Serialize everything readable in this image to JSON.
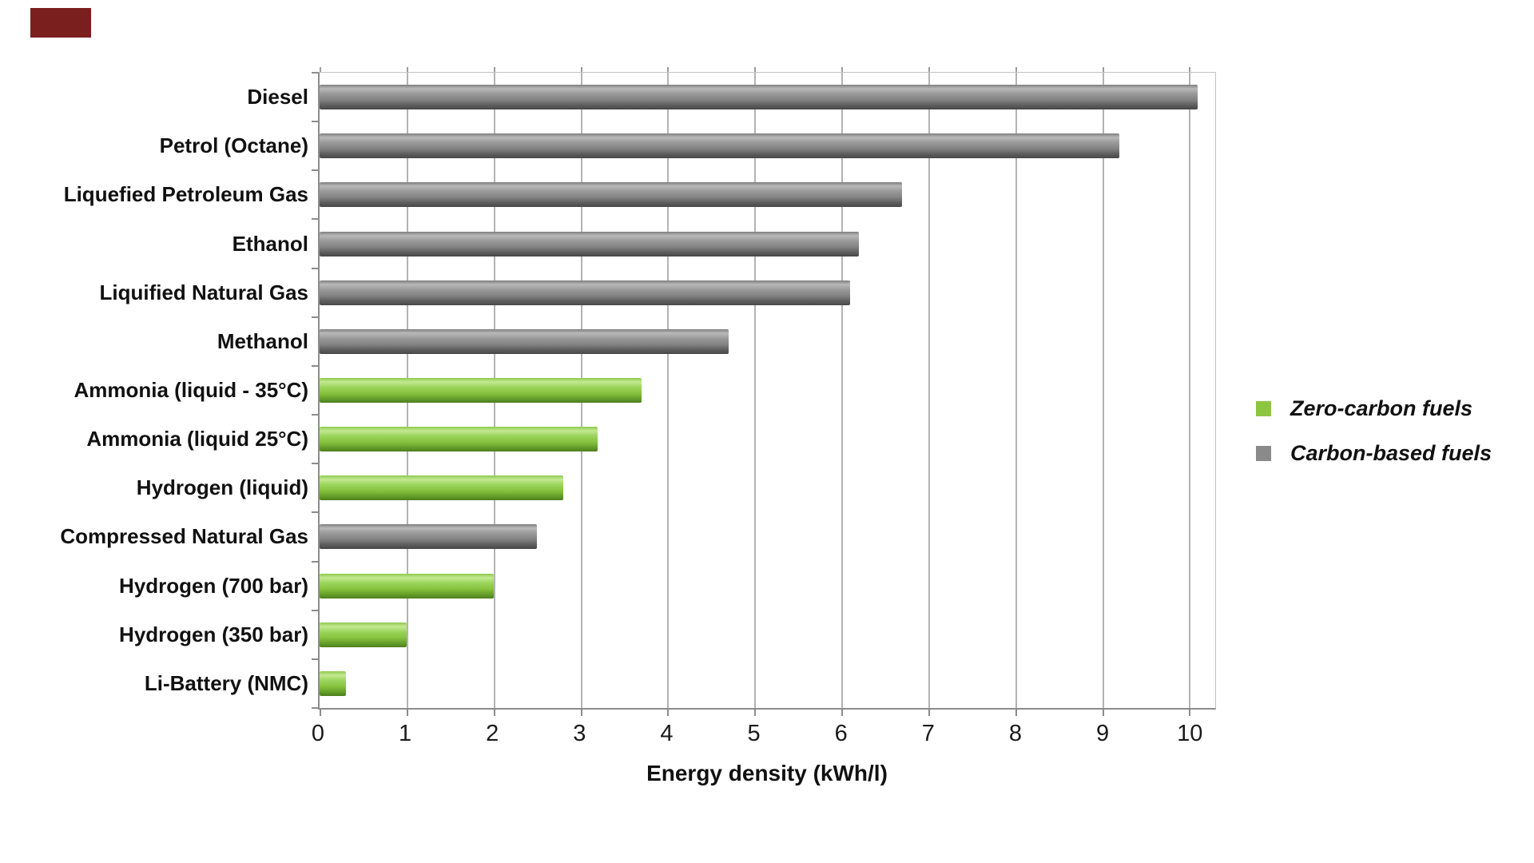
{
  "chart_data": {
    "type": "bar",
    "orientation": "horizontal",
    "title": "",
    "xlabel": "Energy density (kWh/l)",
    "ylabel": "",
    "xlim": [
      0,
      10.3
    ],
    "x_ticks": [
      0,
      1,
      2,
      3,
      4,
      5,
      6,
      7,
      8,
      9,
      10
    ],
    "grid": true,
    "legend_position": "right",
    "categories": [
      "Diesel",
      "Petrol (Octane)",
      "Liquefied Petroleum Gas",
      "Ethanol",
      "Liquified Natural Gas",
      "Methanol",
      "Ammonia (liquid - 35°C)",
      "Ammonia (liquid 25°C)",
      "Hydrogen (liquid)",
      "Compressed Natural Gas",
      "Hydrogen (700 bar)",
      "Hydrogen (350 bar)",
      "Li-Battery (NMC)"
    ],
    "values": [
      10.1,
      9.2,
      6.7,
      6.2,
      6.1,
      4.7,
      3.7,
      3.2,
      2.8,
      2.5,
      2.0,
      1.0,
      0.3
    ],
    "series_membership": [
      "carbon",
      "carbon",
      "carbon",
      "carbon",
      "carbon",
      "carbon",
      "zero",
      "zero",
      "zero",
      "carbon",
      "zero",
      "zero",
      "zero"
    ]
  },
  "legend": {
    "items": [
      {
        "label": "Zero-carbon fuels",
        "key": "zero",
        "color": "#8CC63F"
      },
      {
        "label": "Carbon-based fuels",
        "key": "carbon",
        "color": "#8A8A8A"
      }
    ]
  },
  "colors": {
    "zero_carbon_bar": "#8CC63F",
    "carbon_bar": "#8A8A8A",
    "gridline": "#B3B3B3",
    "axis": "#8C8C8C",
    "red_block": "#7B1E1E"
  }
}
